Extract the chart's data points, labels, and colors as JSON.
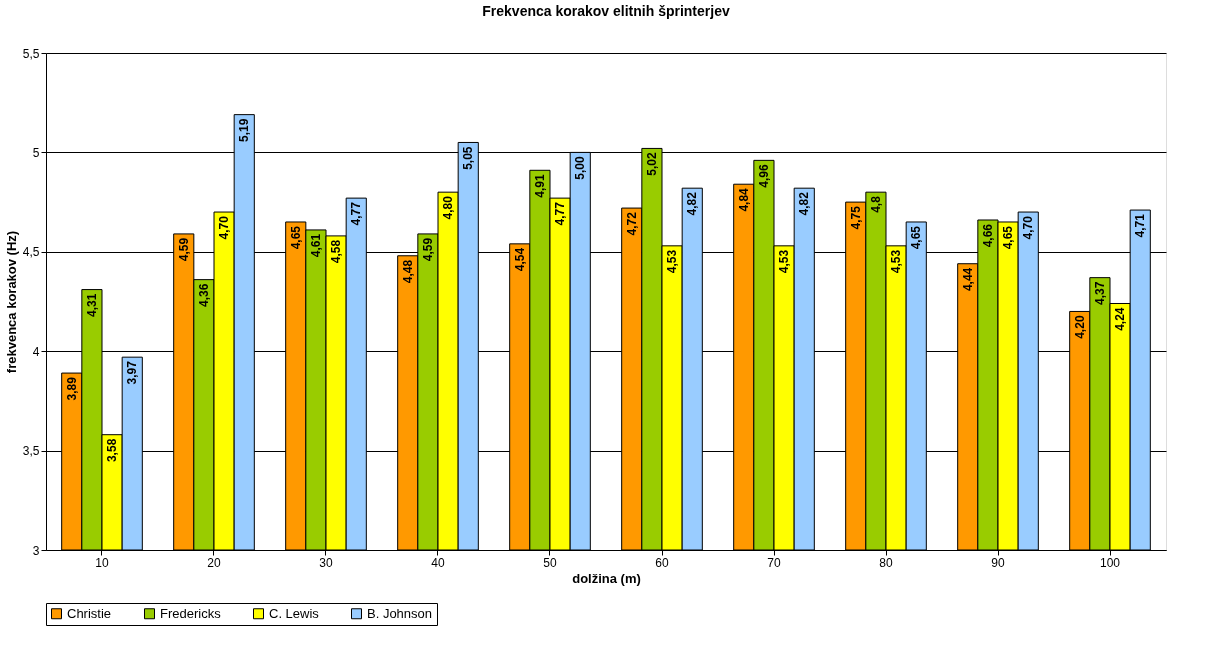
{
  "chart_data": {
    "type": "bar",
    "title": "Frekvenca korakov elitnih šprinterjev",
    "xlabel": "dolžina (m)",
    "ylabel": "frekvenca korakov (Hz)",
    "categories": [
      "10",
      "20",
      "30",
      "40",
      "50",
      "60",
      "70",
      "80",
      "90",
      "100"
    ],
    "series": [
      {
        "name": "Christie",
        "color": "#ff9900",
        "values": [
          3.89,
          4.59,
          4.65,
          4.48,
          4.54,
          4.72,
          4.84,
          4.75,
          4.44,
          4.2
        ],
        "value_labels": [
          "3,89",
          "4,59",
          "4,65",
          "4,48",
          "4,54",
          "4,72",
          "4,84",
          "4,75",
          "4,44",
          "4,20"
        ]
      },
      {
        "name": "Fredericks",
        "color": "#99cc00",
        "values": [
          4.31,
          4.36,
          4.61,
          4.59,
          4.91,
          5.02,
          4.96,
          4.8,
          4.66,
          4.37
        ],
        "value_labels": [
          "4,31",
          "4,36",
          "4,61",
          "4,59",
          "4,91",
          "5,02",
          "4,96",
          "4,8",
          "4,66",
          "4,37"
        ]
      },
      {
        "name": "C. Lewis",
        "color": "#ffff00",
        "values": [
          3.58,
          4.7,
          4.58,
          4.8,
          4.77,
          4.53,
          4.53,
          4.53,
          4.65,
          4.24
        ],
        "value_labels": [
          "3,58",
          "4,70",
          "4,58",
          "4,80",
          "4,77",
          "4,53",
          "4,53",
          "4,53",
          "4,65",
          "4,24"
        ]
      },
      {
        "name": "B. Johnson",
        "color": "#99ccff",
        "values": [
          3.97,
          5.19,
          4.77,
          5.05,
          5.0,
          4.82,
          4.82,
          4.65,
          4.7,
          4.71
        ],
        "value_labels": [
          "3,97",
          "5,19",
          "4,77",
          "5,05",
          "5,00",
          "4,82",
          "4,82",
          "4,65",
          "4,70",
          "4,71"
        ]
      }
    ],
    "ylim": [
      3,
      5.5
    ],
    "yticks": [
      3,
      {
        "value": 3.5,
        "label": "3,5"
      },
      4,
      {
        "value": 4.5,
        "label": "4,5"
      },
      5,
      {
        "value": 5.5,
        "label": "5,5"
      }
    ],
    "grid": "y",
    "legend": "bottom"
  }
}
